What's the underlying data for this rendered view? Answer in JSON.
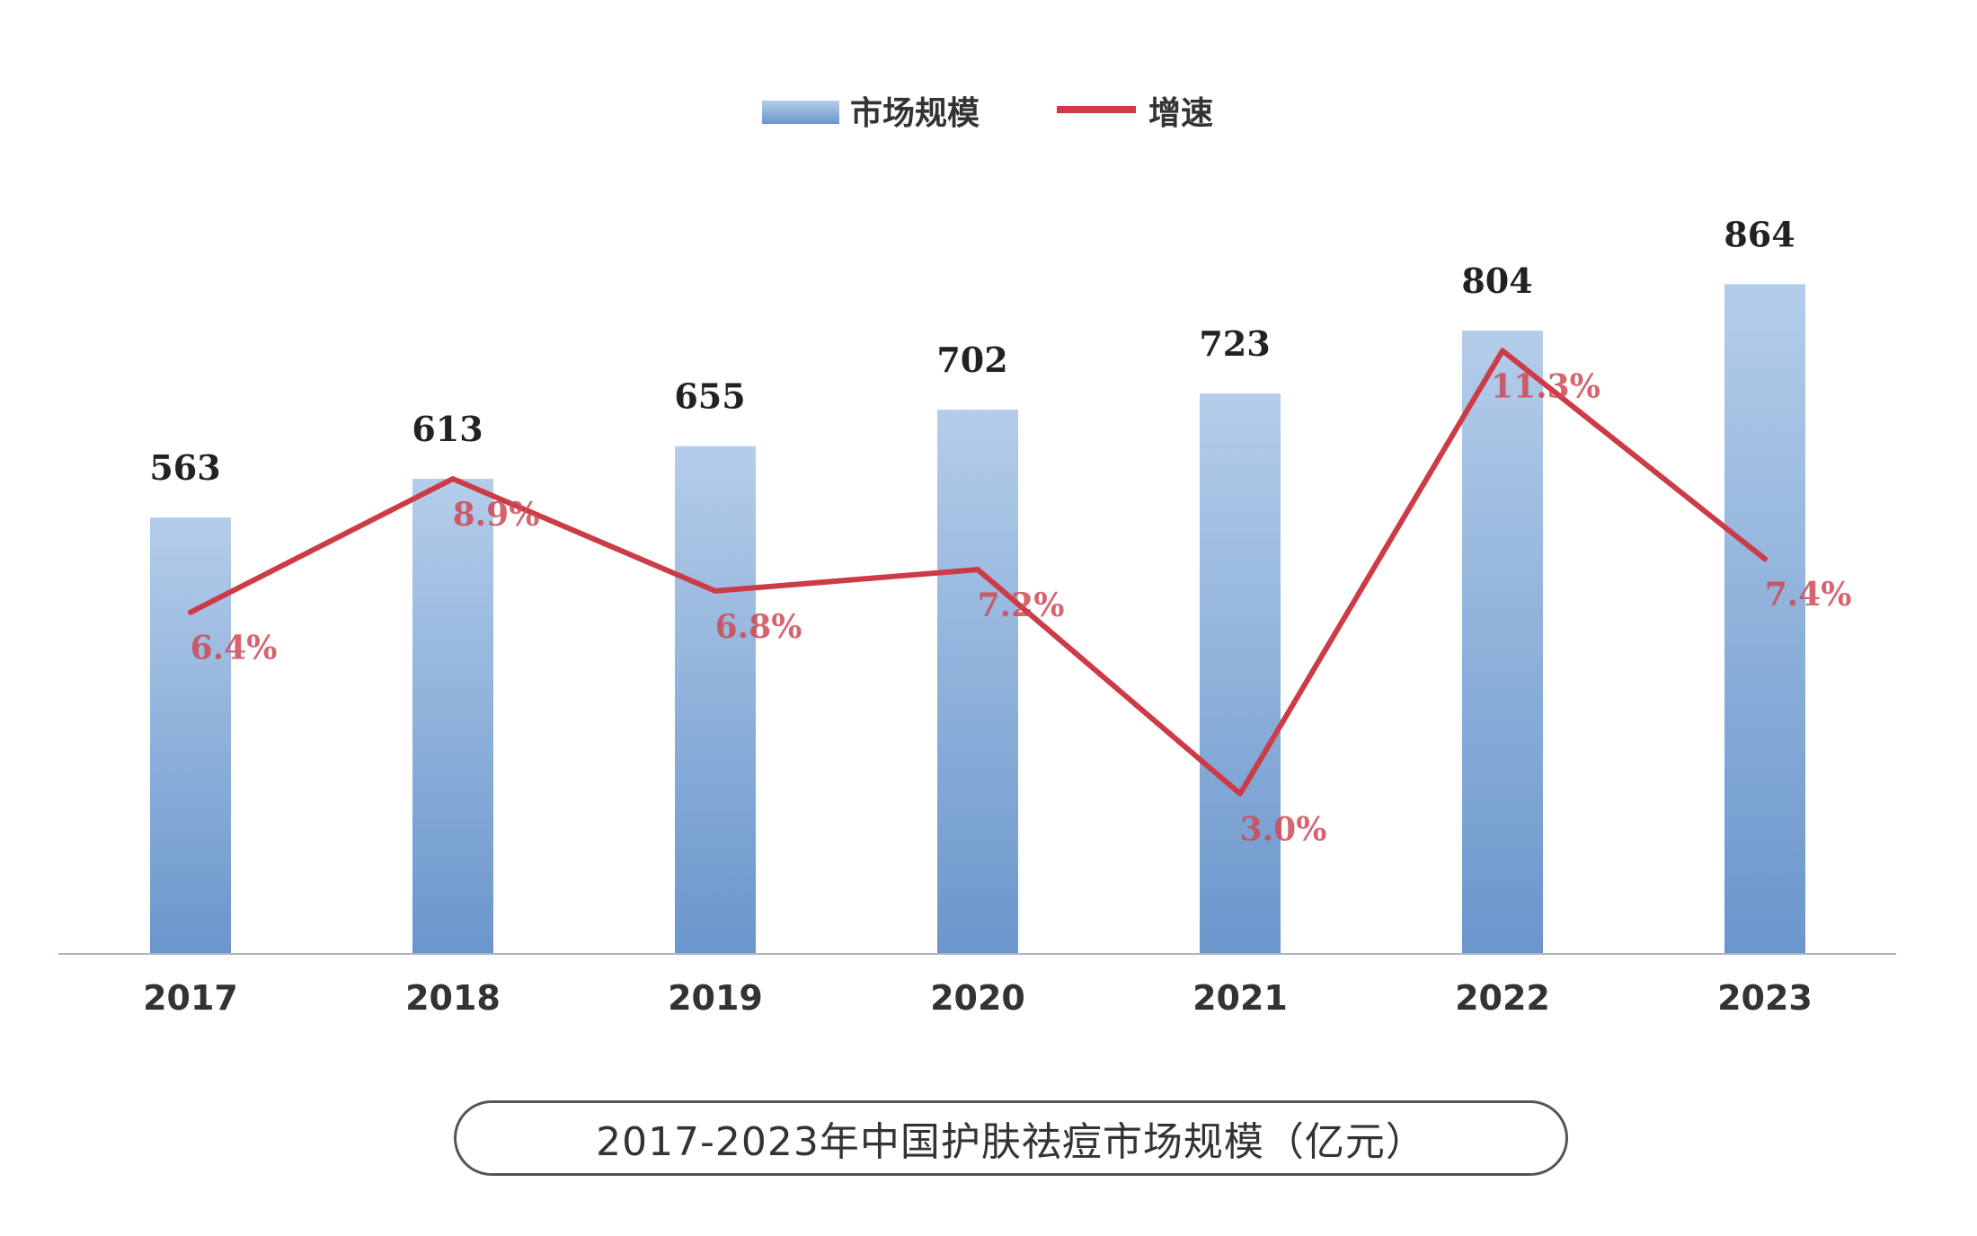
{
  "chart_data": {
    "type": "bar",
    "title": "2017-2023年中国护肤祛痘市场规模（亿元）",
    "categories": [
      "2017",
      "2018",
      "2019",
      "2020",
      "2021",
      "2022",
      "2023"
    ],
    "series": [
      {
        "name": "市场规模",
        "type": "bar",
        "values": [
          563,
          613,
          655,
          702,
          723,
          804,
          864
        ],
        "labels": [
          "563",
          "613",
          "655",
          "702",
          "723",
          "804",
          "864"
        ]
      },
      {
        "name": "增速",
        "type": "line",
        "values": [
          6.4,
          8.9,
          6.8,
          7.2,
          3.0,
          11.3,
          7.4
        ],
        "labels": [
          "6.4%",
          "8.9%",
          "6.8%",
          "7.2%",
          "3.0%",
          "11.3%",
          "7.4%"
        ]
      }
    ],
    "legend": "top-center",
    "grid": false,
    "ylim_bar": [
      0,
      964
    ],
    "ylim_line": [
      0,
      14
    ],
    "colors": {
      "bar_top": "#b4cdea",
      "bar_bottom": "#6a96cc",
      "line": "#cc3b46",
      "axis": "#aab6c8"
    }
  }
}
